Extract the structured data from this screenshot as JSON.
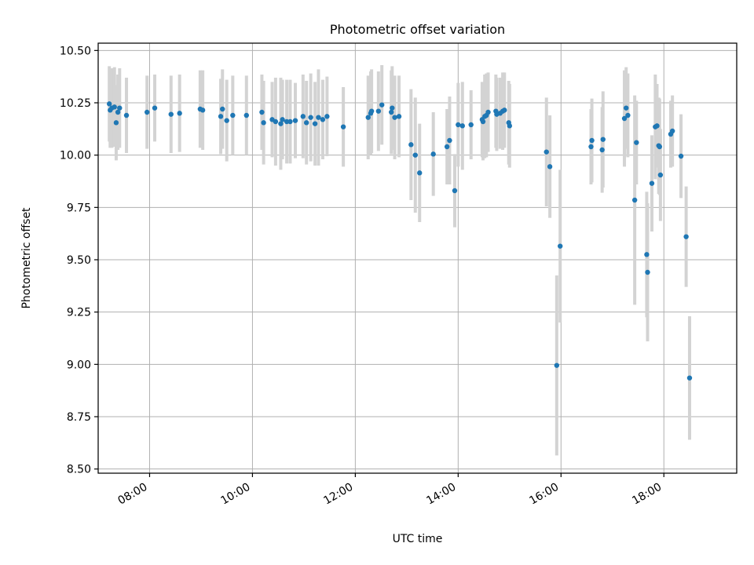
{
  "chart_data": {
    "type": "scatter",
    "title": "Photometric offset variation",
    "xlabel": "UTC time",
    "ylabel": "Photometric offset",
    "xlim": [
      "07:00",
      "19:25"
    ],
    "ylim": [
      8.48,
      10.535
    ],
    "grid": true,
    "colors": {
      "point": "#1f77b4",
      "errorbar": "#d3d3d3",
      "grid": "#b0b0b0"
    },
    "xticks": [
      "08:00",
      "10:00",
      "12:00",
      "14:00",
      "16:00",
      "18:00"
    ],
    "yticks": [
      "8.50",
      "8.75",
      "9.00",
      "9.25",
      "9.50",
      "9.75",
      "10.00",
      "10.25",
      "10.50"
    ],
    "points": [
      {
        "t": "07:13",
        "y": 10.245,
        "err": 0.18
      },
      {
        "t": "07:14",
        "y": 10.215,
        "err": 0.18
      },
      {
        "t": "07:16",
        "y": 10.225,
        "err": 0.19
      },
      {
        "t": "07:19",
        "y": 10.23,
        "err": 0.19
      },
      {
        "t": "07:21",
        "y": 10.155,
        "err": 0.18
      },
      {
        "t": "07:23",
        "y": 10.205,
        "err": 0.18
      },
      {
        "t": "07:25",
        "y": 10.225,
        "err": 0.19
      },
      {
        "t": "07:33",
        "y": 10.19,
        "err": 0.18
      },
      {
        "t": "07:57",
        "y": 10.205,
        "err": 0.175
      },
      {
        "t": "08:06",
        "y": 10.225,
        "err": 0.16
      },
      {
        "t": "08:25",
        "y": 10.195,
        "err": 0.185
      },
      {
        "t": "08:35",
        "y": 10.2,
        "err": 0.185
      },
      {
        "t": "08:59",
        "y": 10.22,
        "err": 0.185
      },
      {
        "t": "09:02",
        "y": 10.215,
        "err": 0.19
      },
      {
        "t": "09:23",
        "y": 10.185,
        "err": 0.18
      },
      {
        "t": "09:25",
        "y": 10.22,
        "err": 0.19
      },
      {
        "t": "09:30",
        "y": 10.165,
        "err": 0.195
      },
      {
        "t": "09:37",
        "y": 10.19,
        "err": 0.19
      },
      {
        "t": "09:53",
        "y": 10.19,
        "err": 0.19
      },
      {
        "t": "10:11",
        "y": 10.205,
        "err": 0.18
      },
      {
        "t": "10:13",
        "y": 10.155,
        "err": 0.2
      },
      {
        "t": "10:23",
        "y": 10.17,
        "err": 0.18
      },
      {
        "t": "10:27",
        "y": 10.16,
        "err": 0.21
      },
      {
        "t": "10:33",
        "y": 10.15,
        "err": 0.22
      },
      {
        "t": "10:35",
        "y": 10.17,
        "err": 0.19
      },
      {
        "t": "10:40",
        "y": 10.16,
        "err": 0.2
      },
      {
        "t": "10:44",
        "y": 10.16,
        "err": 0.2
      },
      {
        "t": "10:50",
        "y": 10.165,
        "err": 0.18
      },
      {
        "t": "10:59",
        "y": 10.185,
        "err": 0.2
      },
      {
        "t": "11:03",
        "y": 10.155,
        "err": 0.2
      },
      {
        "t": "11:08",
        "y": 10.18,
        "err": 0.21
      },
      {
        "t": "11:13",
        "y": 10.15,
        "err": 0.2
      },
      {
        "t": "11:17",
        "y": 10.18,
        "err": 0.23
      },
      {
        "t": "11:22",
        "y": 10.17,
        "err": 0.19
      },
      {
        "t": "11:27",
        "y": 10.185,
        "err": 0.19
      },
      {
        "t": "11:46",
        "y": 10.135,
        "err": 0.19
      },
      {
        "t": "12:15",
        "y": 10.18,
        "err": 0.2
      },
      {
        "t": "12:18",
        "y": 10.2,
        "err": 0.2
      },
      {
        "t": "12:19",
        "y": 10.21,
        "err": 0.2
      },
      {
        "t": "12:27",
        "y": 10.21,
        "err": 0.19
      },
      {
        "t": "12:31",
        "y": 10.24,
        "err": 0.19
      },
      {
        "t": "12:42",
        "y": 10.205,
        "err": 0.2
      },
      {
        "t": "12:43",
        "y": 10.225,
        "err": 0.2
      },
      {
        "t": "12:46",
        "y": 10.18,
        "err": 0.2
      },
      {
        "t": "12:51",
        "y": 10.185,
        "err": 0.195
      },
      {
        "t": "13:05",
        "y": 10.05,
        "err": 0.265
      },
      {
        "t": "13:10",
        "y": 10.0,
        "err": 0.275
      },
      {
        "t": "13:15",
        "y": 9.915,
        "err": 0.235
      },
      {
        "t": "13:31",
        "y": 10.005,
        "err": 0.2
      },
      {
        "t": "13:47",
        "y": 10.04,
        "err": 0.18
      },
      {
        "t": "13:50",
        "y": 10.07,
        "err": 0.21
      },
      {
        "t": "13:56",
        "y": 9.83,
        "err": 0.175
      },
      {
        "t": "14:00",
        "y": 10.145,
        "err": 0.2
      },
      {
        "t": "14:05",
        "y": 10.14,
        "err": 0.21
      },
      {
        "t": "14:15",
        "y": 10.145,
        "err": 0.165
      },
      {
        "t": "14:28",
        "y": 10.17,
        "err": 0.18
      },
      {
        "t": "14:29",
        "y": 10.16,
        "err": 0.185
      },
      {
        "t": "14:31",
        "y": 10.185,
        "err": 0.2
      },
      {
        "t": "14:33",
        "y": 10.19,
        "err": 0.2
      },
      {
        "t": "14:35",
        "y": 10.205,
        "err": 0.19
      },
      {
        "t": "14:44",
        "y": 10.21,
        "err": 0.175
      },
      {
        "t": "14:45",
        "y": 10.195,
        "err": 0.175
      },
      {
        "t": "14:49",
        "y": 10.2,
        "err": 0.17
      },
      {
        "t": "14:52",
        "y": 10.21,
        "err": 0.185
      },
      {
        "t": "14:54",
        "y": 10.215,
        "err": 0.18
      },
      {
        "t": "14:59",
        "y": 10.155,
        "err": 0.2
      },
      {
        "t": "15:00",
        "y": 10.14,
        "err": 0.2
      },
      {
        "t": "15:43",
        "y": 10.015,
        "err": 0.26
      },
      {
        "t": "15:47",
        "y": 9.945,
        "err": 0.245
      },
      {
        "t": "15:55",
        "y": 8.995,
        "err": 0.43
      },
      {
        "t": "15:59",
        "y": 9.565,
        "err": 0.365
      },
      {
        "t": "16:35",
        "y": 10.04,
        "err": 0.18
      },
      {
        "t": "16:36",
        "y": 10.07,
        "err": 0.2
      },
      {
        "t": "16:48",
        "y": 10.025,
        "err": 0.205
      },
      {
        "t": "16:49",
        "y": 10.075,
        "err": 0.23
      },
      {
        "t": "17:14",
        "y": 10.175,
        "err": 0.23
      },
      {
        "t": "17:16",
        "y": 10.225,
        "err": 0.195
      },
      {
        "t": "17:18",
        "y": 10.19,
        "err": 0.2
      },
      {
        "t": "17:26",
        "y": 9.785,
        "err": 0.5
      },
      {
        "t": "17:28",
        "y": 10.06,
        "err": 0.2
      },
      {
        "t": "17:40",
        "y": 9.525,
        "err": 0.3
      },
      {
        "t": "17:41",
        "y": 9.44,
        "err": 0.33
      },
      {
        "t": "17:46",
        "y": 9.865,
        "err": 0.23
      },
      {
        "t": "17:50",
        "y": 10.135,
        "err": 0.25
      },
      {
        "t": "17:52",
        "y": 10.14,
        "err": 0.2
      },
      {
        "t": "17:54",
        "y": 10.045,
        "err": 0.23
      },
      {
        "t": "17:55",
        "y": 10.04,
        "err": 0.23
      },
      {
        "t": "17:56",
        "y": 9.905,
        "err": 0.22
      },
      {
        "t": "18:08",
        "y": 10.1,
        "err": 0.16
      },
      {
        "t": "18:10",
        "y": 10.115,
        "err": 0.17
      },
      {
        "t": "18:20",
        "y": 9.995,
        "err": 0.2
      },
      {
        "t": "18:26",
        "y": 9.61,
        "err": 0.24
      },
      {
        "t": "18:30",
        "y": 8.935,
        "err": 0.295
      }
    ]
  }
}
